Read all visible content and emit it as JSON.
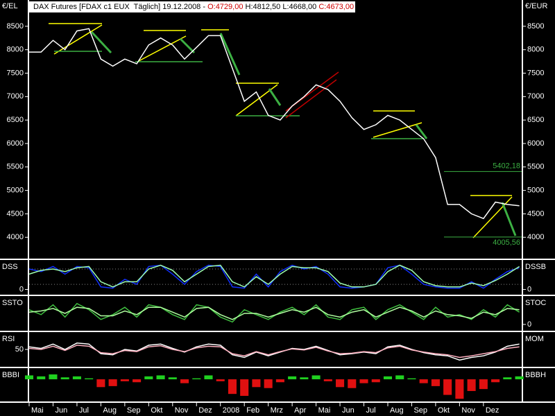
{
  "chart_data": [
    {
      "type": "line",
      "title_parts": [
        {
          "text": "DAX Futures [FDAX c1 EUX  Täglich] 19.12.2008 - ",
          "color": "#000000"
        },
        {
          "text": "O:4729,00",
          "color": "#d00000"
        },
        {
          "text": " H:4812,50 L:4668,00 ",
          "color": "#000000"
        },
        {
          "text": "C:4673,00",
          "color": "#d00000"
        }
      ],
      "left_label": "€/EL",
      "right_label": "€/EUR",
      "x": [
        0,
        0.5,
        1,
        1.5,
        2,
        2.5,
        3,
        3.5,
        4,
        4.5,
        5,
        5.5,
        6,
        6.5,
        7,
        7.5,
        8,
        8.5,
        9,
        9.5,
        10,
        10.5,
        11,
        11.5,
        12,
        12.5,
        13,
        13.5,
        14,
        14.5,
        15,
        15.5,
        16,
        16.5,
        17,
        17.5,
        18,
        18.5,
        19,
        19.5,
        20,
        20.5
      ],
      "series": [
        {
          "color": "#ffffff",
          "values": [
            7950,
            7950,
            8200,
            8000,
            8400,
            8450,
            7800,
            7650,
            7800,
            7700,
            8100,
            8250,
            8100,
            7800,
            8050,
            8300,
            8300,
            7600,
            6900,
            7100,
            6600,
            6500,
            6800,
            7000,
            7250,
            7150,
            6900,
            6550,
            6300,
            6400,
            6600,
            6500,
            6300,
            6100,
            5700,
            4700,
            4700,
            4500,
            4400,
            4750,
            4700,
            4673
          ]
        }
      ],
      "xlim": [
        0,
        20.6
      ],
      "ylim": [
        3560,
        9060
      ],
      "yticks": [
        4000,
        4500,
        5000,
        5500,
        6000,
        6500,
        7000,
        7500,
        8000,
        8500
      ],
      "ytick_sides": [
        "left",
        "right"
      ],
      "levels": [
        {
          "value": 5402.18,
          "label": "5402,18"
        },
        {
          "value": 4005.56,
          "label": "4005,56"
        }
      ],
      "level_color": "#3cb043"
    },
    {
      "type": "line",
      "left_label": "DSS",
      "right_label": "DSSB",
      "x": [
        0,
        0.5,
        1,
        1.5,
        2,
        2.5,
        3,
        3.5,
        4,
        4.5,
        5,
        5.5,
        6,
        6.5,
        7,
        7.5,
        8,
        8.5,
        9,
        9.5,
        10,
        10.5,
        11,
        11.5,
        12,
        12.5,
        13,
        13.5,
        14,
        14.5,
        15,
        15.5,
        16,
        16.5,
        17,
        17.5,
        18,
        18.5,
        19,
        19.5,
        20,
        20.5
      ],
      "series": [
        {
          "color": "#1030ff",
          "values": [
            80,
            70,
            90,
            60,
            90,
            85,
            10,
            5,
            40,
            20,
            90,
            95,
            60,
            20,
            70,
            95,
            90,
            10,
            5,
            60,
            10,
            70,
            95,
            80,
            90,
            60,
            10,
            5,
            10,
            20,
            85,
            95,
            60,
            20,
            10,
            5,
            5,
            30,
            5,
            40,
            70,
            85
          ]
        },
        {
          "color": "#a0ffb0",
          "values": [
            60,
            75,
            80,
            70,
            85,
            90,
            30,
            10,
            30,
            30,
            80,
            95,
            75,
            30,
            60,
            90,
            95,
            30,
            10,
            50,
            20,
            60,
            90,
            85,
            85,
            70,
            25,
            10,
            10,
            20,
            70,
            95,
            75,
            30,
            15,
            10,
            10,
            25,
            15,
            35,
            60,
            90
          ]
        }
      ],
      "xlim": [
        0,
        20.6
      ],
      "ylim": [
        -15,
        110
      ],
      "yticks": [
        0
      ],
      "ytick_sides": [
        "left",
        "right"
      ],
      "levels_dotted": [
        20,
        80
      ]
    },
    {
      "type": "line",
      "left_label": "SSTO",
      "right_label": "STOC",
      "x": [
        0,
        0.5,
        1,
        1.5,
        2,
        2.5,
        3,
        3.5,
        4,
        4.5,
        5,
        5.5,
        6,
        6.5,
        7,
        7.5,
        8,
        8.5,
        9,
        9.5,
        10,
        10.5,
        11,
        11.5,
        12,
        12.5,
        13,
        13.5,
        14,
        14.5,
        15,
        15.5,
        16,
        16.5,
        17,
        17.5,
        18,
        18.5,
        19,
        19.5,
        20,
        20.5
      ],
      "series": [
        {
          "color": "#40c040",
          "values": [
            60,
            40,
            80,
            30,
            85,
            60,
            20,
            40,
            70,
            30,
            80,
            70,
            40,
            20,
            80,
            70,
            30,
            10,
            60,
            40,
            20,
            50,
            70,
            40,
            80,
            30,
            20,
            60,
            70,
            20,
            60,
            80,
            50,
            20,
            70,
            30,
            40,
            20,
            60,
            30,
            80,
            50
          ]
        },
        {
          "color": "#b0ffa0",
          "values": [
            50,
            55,
            65,
            45,
            70,
            65,
            35,
            35,
            55,
            40,
            70,
            70,
            50,
            30,
            65,
            70,
            40,
            20,
            45,
            45,
            30,
            45,
            60,
            50,
            70,
            40,
            30,
            50,
            60,
            30,
            50,
            70,
            55,
            30,
            55,
            40,
            35,
            25,
            50,
            40,
            65,
            60
          ]
        }
      ],
      "xlim": [
        0,
        20.6
      ],
      "ylim": [
        -20,
        110
      ],
      "yticks": [
        0
      ],
      "ytick_sides": [
        "right"
      ]
    },
    {
      "type": "line",
      "left_label": "RSI",
      "right_label": "MOM",
      "x": [
        0,
        0.5,
        1,
        1.5,
        2,
        2.5,
        3,
        3.5,
        4,
        4.5,
        5,
        5.5,
        6,
        6.5,
        7,
        7.5,
        8,
        8.5,
        9,
        9.5,
        10,
        10.5,
        11,
        11.5,
        12,
        12.5,
        13,
        13.5,
        14,
        14.5,
        15,
        15.5,
        16,
        16.5,
        17,
        17.5,
        18,
        18.5,
        19,
        19.5,
        20,
        20.5
      ],
      "series": [
        {
          "color": "#ffffff",
          "values": [
            55,
            52,
            60,
            50,
            62,
            60,
            42,
            40,
            50,
            47,
            58,
            60,
            52,
            45,
            55,
            60,
            58,
            40,
            35,
            45,
            38,
            45,
            52,
            50,
            56,
            48,
            40,
            42,
            45,
            42,
            55,
            58,
            50,
            44,
            40,
            38,
            30,
            35,
            38,
            45,
            56,
            60
          ]
        },
        {
          "color": "#ffb0c0",
          "values": [
            52,
            50,
            56,
            48,
            58,
            56,
            44,
            42,
            48,
            46,
            55,
            57,
            50,
            46,
            53,
            56,
            55,
            42,
            38,
            46,
            40,
            46,
            51,
            49,
            54,
            47,
            42,
            43,
            46,
            44,
            53,
            56,
            49,
            45,
            42,
            40,
            35,
            38,
            42,
            46,
            52,
            55
          ]
        }
      ],
      "xlim": [
        0,
        20.6
      ],
      "ylim": [
        20,
        80
      ],
      "yticks": [
        50
      ],
      "ytick_sides": [
        "left"
      ]
    },
    {
      "type": "bar",
      "left_label": "BBBI",
      "right_label": "BBBH",
      "x": [
        0,
        0.5,
        1,
        1.5,
        2,
        2.5,
        3,
        3.5,
        4,
        4.5,
        5,
        5.5,
        6,
        6.5,
        7,
        7.5,
        8,
        8.5,
        9,
        9.5,
        10,
        10.5,
        11,
        11.5,
        12,
        12.5,
        13,
        13.5,
        14,
        14.5,
        15,
        15.5,
        16,
        16.5,
        17,
        17.5,
        18,
        18.5,
        19,
        19.5,
        20,
        20.5
      ],
      "values": [
        0.4,
        0.3,
        0.5,
        0.2,
        0.3,
        0.1,
        -0.8,
        -0.7,
        -0.2,
        -0.3,
        0.3,
        0.4,
        0.2,
        -0.4,
        0.1,
        0.4,
        -0.2,
        -1.5,
        -1.7,
        -0.8,
        -0.9,
        -0.3,
        0.3,
        0.2,
        0.4,
        -0.2,
        -0.8,
        -0.9,
        -0.4,
        -0.3,
        0.3,
        0.4,
        0.1,
        -0.4,
        -0.7,
        -1.6,
        -2.0,
        -1.2,
        -1.0,
        -0.3,
        0.2,
        0.3
      ],
      "pos_color": "#20d020",
      "neg_color": "#e01010",
      "xlim": [
        0,
        20.6
      ],
      "ylim": [
        -2.2,
        1
      ],
      "xticks": [
        {
          "value": 0,
          "label": "Mai"
        },
        {
          "value": 1,
          "label": "Jun"
        },
        {
          "value": 2,
          "label": "Jul"
        },
        {
          "value": 3,
          "label": "Aug"
        },
        {
          "value": 4,
          "label": "Sep"
        },
        {
          "value": 5,
          "label": "Okt"
        },
        {
          "value": 6,
          "label": "Nov"
        },
        {
          "value": 7,
          "label": "Dez"
        },
        {
          "value": 8,
          "label": "2008"
        },
        {
          "value": 9,
          "label": "Feb"
        },
        {
          "value": 10,
          "label": "Mrz"
        },
        {
          "value": 11,
          "label": "Apr"
        },
        {
          "value": 12,
          "label": "Mai"
        },
        {
          "value": 13,
          "label": "Jun"
        },
        {
          "value": 14,
          "label": "Jul"
        },
        {
          "value": 15,
          "label": "Aug"
        },
        {
          "value": 16,
          "label": "Sep"
        },
        {
          "value": 17,
          "label": "Okt"
        },
        {
          "value": 18,
          "label": "Nov"
        },
        {
          "value": 19,
          "label": "Dez"
        }
      ]
    }
  ]
}
